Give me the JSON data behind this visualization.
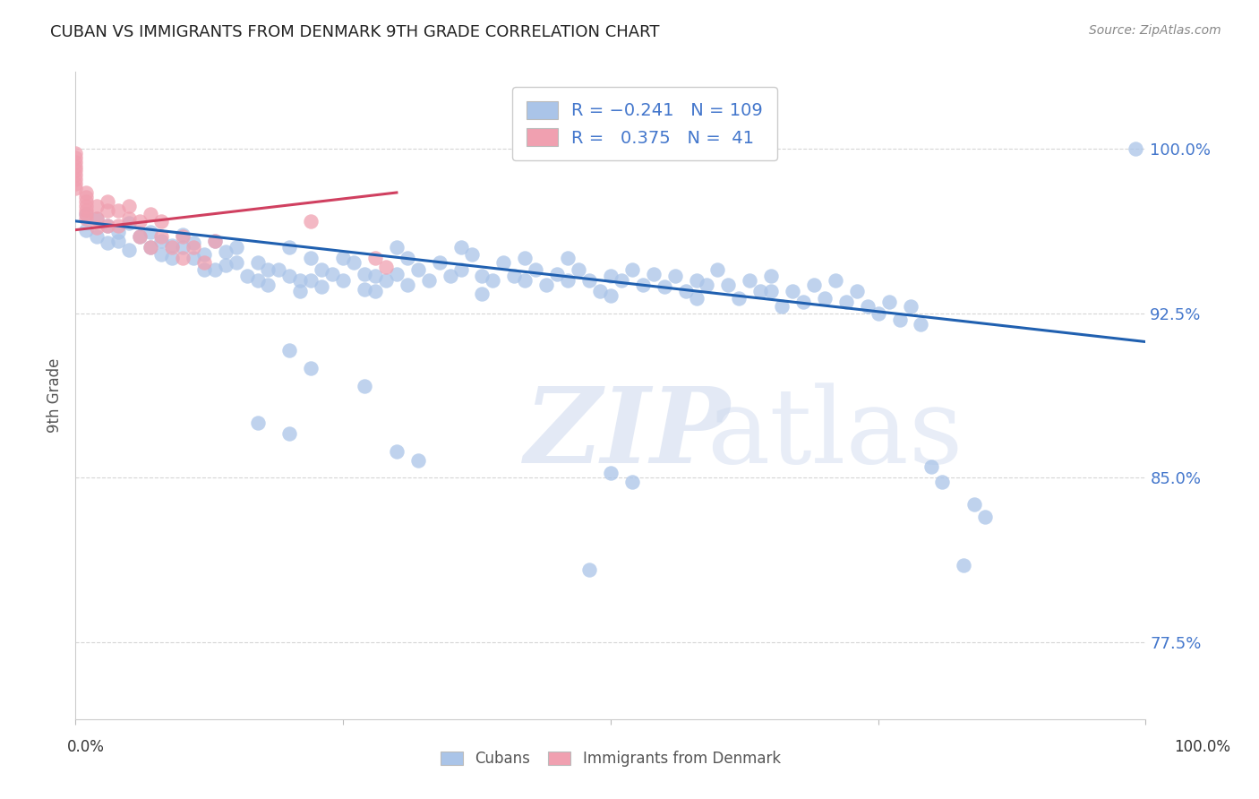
{
  "title": "CUBAN VS IMMIGRANTS FROM DENMARK 9TH GRADE CORRELATION CHART",
  "source": "Source: ZipAtlas.com",
  "ylabel": "9th Grade",
  "ytick_labels": [
    "100.0%",
    "92.5%",
    "85.0%",
    "77.5%"
  ],
  "ytick_values": [
    1.0,
    0.925,
    0.85,
    0.775
  ],
  "xlim": [
    0.0,
    1.0
  ],
  "ylim": [
    0.74,
    1.035
  ],
  "watermark_zi": "ZIP",
  "watermark_atlas": "atlas",
  "blue_color": "#aac4e8",
  "pink_color": "#f0a0b0",
  "blue_line_color": "#2060b0",
  "pink_line_color": "#d04060",
  "blue_scatter": [
    [
      0.01,
      0.97
    ],
    [
      0.01,
      0.963
    ],
    [
      0.02,
      0.968
    ],
    [
      0.02,
      0.96
    ],
    [
      0.03,
      0.957
    ],
    [
      0.03,
      0.965
    ],
    [
      0.04,
      0.962
    ],
    [
      0.04,
      0.958
    ],
    [
      0.05,
      0.966
    ],
    [
      0.05,
      0.954
    ],
    [
      0.06,
      0.96
    ],
    [
      0.07,
      0.955
    ],
    [
      0.07,
      0.962
    ],
    [
      0.08,
      0.958
    ],
    [
      0.08,
      0.952
    ],
    [
      0.09,
      0.95
    ],
    [
      0.09,
      0.956
    ],
    [
      0.1,
      0.955
    ],
    [
      0.1,
      0.961
    ],
    [
      0.11,
      0.95
    ],
    [
      0.11,
      0.957
    ],
    [
      0.12,
      0.945
    ],
    [
      0.12,
      0.952
    ],
    [
      0.13,
      0.958
    ],
    [
      0.13,
      0.945
    ],
    [
      0.14,
      0.953
    ],
    [
      0.14,
      0.947
    ],
    [
      0.15,
      0.955
    ],
    [
      0.15,
      0.948
    ],
    [
      0.16,
      0.942
    ],
    [
      0.17,
      0.948
    ],
    [
      0.17,
      0.94
    ],
    [
      0.18,
      0.945
    ],
    [
      0.18,
      0.938
    ],
    [
      0.19,
      0.945
    ],
    [
      0.2,
      0.955
    ],
    [
      0.2,
      0.942
    ],
    [
      0.21,
      0.94
    ],
    [
      0.21,
      0.935
    ],
    [
      0.22,
      0.95
    ],
    [
      0.22,
      0.94
    ],
    [
      0.23,
      0.945
    ],
    [
      0.23,
      0.937
    ],
    [
      0.24,
      0.943
    ],
    [
      0.25,
      0.95
    ],
    [
      0.25,
      0.94
    ],
    [
      0.26,
      0.948
    ],
    [
      0.27,
      0.943
    ],
    [
      0.27,
      0.936
    ],
    [
      0.28,
      0.942
    ],
    [
      0.28,
      0.935
    ],
    [
      0.29,
      0.94
    ],
    [
      0.3,
      0.955
    ],
    [
      0.3,
      0.943
    ],
    [
      0.31,
      0.95
    ],
    [
      0.31,
      0.938
    ],
    [
      0.32,
      0.945
    ],
    [
      0.33,
      0.94
    ],
    [
      0.34,
      0.948
    ],
    [
      0.35,
      0.942
    ],
    [
      0.36,
      0.955
    ],
    [
      0.36,
      0.945
    ],
    [
      0.37,
      0.952
    ],
    [
      0.38,
      0.942
    ],
    [
      0.38,
      0.934
    ],
    [
      0.39,
      0.94
    ],
    [
      0.4,
      0.948
    ],
    [
      0.41,
      0.942
    ],
    [
      0.42,
      0.95
    ],
    [
      0.42,
      0.94
    ],
    [
      0.43,
      0.945
    ],
    [
      0.44,
      0.938
    ],
    [
      0.45,
      0.943
    ],
    [
      0.46,
      0.95
    ],
    [
      0.46,
      0.94
    ],
    [
      0.47,
      0.945
    ],
    [
      0.48,
      0.94
    ],
    [
      0.49,
      0.935
    ],
    [
      0.5,
      0.942
    ],
    [
      0.5,
      0.933
    ],
    [
      0.51,
      0.94
    ],
    [
      0.52,
      0.945
    ],
    [
      0.53,
      0.938
    ],
    [
      0.54,
      0.943
    ],
    [
      0.55,
      0.937
    ],
    [
      0.56,
      0.942
    ],
    [
      0.57,
      0.935
    ],
    [
      0.58,
      0.94
    ],
    [
      0.58,
      0.932
    ],
    [
      0.59,
      0.938
    ],
    [
      0.6,
      0.945
    ],
    [
      0.61,
      0.938
    ],
    [
      0.62,
      0.932
    ],
    [
      0.63,
      0.94
    ],
    [
      0.64,
      0.935
    ],
    [
      0.65,
      0.942
    ],
    [
      0.65,
      0.935
    ],
    [
      0.66,
      0.928
    ],
    [
      0.67,
      0.935
    ],
    [
      0.68,
      0.93
    ],
    [
      0.69,
      0.938
    ],
    [
      0.7,
      0.932
    ],
    [
      0.71,
      0.94
    ],
    [
      0.72,
      0.93
    ],
    [
      0.73,
      0.935
    ],
    [
      0.74,
      0.928
    ],
    [
      0.75,
      0.925
    ],
    [
      0.76,
      0.93
    ],
    [
      0.77,
      0.922
    ],
    [
      0.78,
      0.928
    ],
    [
      0.79,
      0.92
    ],
    [
      0.2,
      0.908
    ],
    [
      0.22,
      0.9
    ],
    [
      0.27,
      0.892
    ],
    [
      0.17,
      0.875
    ],
    [
      0.2,
      0.87
    ],
    [
      0.3,
      0.862
    ],
    [
      0.32,
      0.858
    ],
    [
      0.5,
      0.852
    ],
    [
      0.52,
      0.848
    ],
    [
      0.8,
      0.855
    ],
    [
      0.81,
      0.848
    ],
    [
      0.84,
      0.838
    ],
    [
      0.85,
      0.832
    ],
    [
      0.83,
      0.81
    ],
    [
      0.48,
      0.808
    ],
    [
      0.99,
      1.0
    ]
  ],
  "pink_scatter": [
    [
      0.0,
      0.998
    ],
    [
      0.0,
      0.996
    ],
    [
      0.0,
      0.994
    ],
    [
      0.0,
      0.992
    ],
    [
      0.0,
      0.99
    ],
    [
      0.0,
      0.988
    ],
    [
      0.0,
      0.986
    ],
    [
      0.0,
      0.984
    ],
    [
      0.0,
      0.982
    ],
    [
      0.01,
      0.98
    ],
    [
      0.01,
      0.978
    ],
    [
      0.01,
      0.976
    ],
    [
      0.01,
      0.974
    ],
    [
      0.01,
      0.972
    ],
    [
      0.01,
      0.97
    ],
    [
      0.01,
      0.968
    ],
    [
      0.02,
      0.974
    ],
    [
      0.02,
      0.968
    ],
    [
      0.02,
      0.964
    ],
    [
      0.03,
      0.976
    ],
    [
      0.03,
      0.972
    ],
    [
      0.03,
      0.965
    ],
    [
      0.04,
      0.972
    ],
    [
      0.04,
      0.965
    ],
    [
      0.05,
      0.968
    ],
    [
      0.05,
      0.974
    ],
    [
      0.06,
      0.96
    ],
    [
      0.06,
      0.967
    ],
    [
      0.07,
      0.955
    ],
    [
      0.07,
      0.97
    ],
    [
      0.08,
      0.96
    ],
    [
      0.08,
      0.967
    ],
    [
      0.09,
      0.955
    ],
    [
      0.1,
      0.96
    ],
    [
      0.1,
      0.95
    ],
    [
      0.22,
      0.967
    ],
    [
      0.28,
      0.95
    ],
    [
      0.29,
      0.946
    ],
    [
      0.11,
      0.955
    ],
    [
      0.12,
      0.948
    ],
    [
      0.13,
      0.958
    ]
  ],
  "blue_line_x": [
    0.0,
    1.0
  ],
  "blue_line_y": [
    0.967,
    0.912
  ],
  "pink_line_x": [
    0.0,
    0.3
  ],
  "pink_line_y": [
    0.963,
    0.98
  ]
}
